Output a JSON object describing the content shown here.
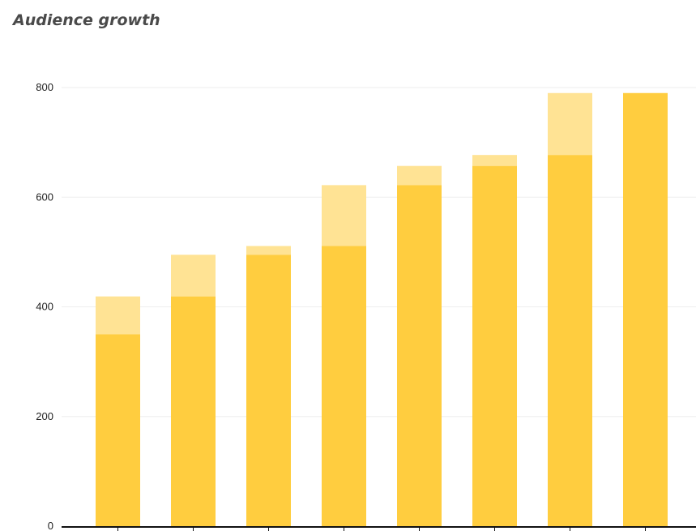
{
  "chart_data": {
    "type": "bar",
    "title": "Audience growth",
    "ylim": [
      0,
      800
    ],
    "yticks": [
      0,
      200,
      400,
      600,
      800
    ],
    "grid": true,
    "categories": [
      "",
      "",
      "",
      "",
      "",
      "",
      "",
      ""
    ],
    "series": [
      {
        "values": [
          350,
          419,
          495,
          511,
          622,
          657,
          677,
          790
        ]
      },
      {
        "values": [
          419,
          495,
          511,
          622,
          657,
          677,
          790,
          790
        ]
      }
    ],
    "colors": {
      "base": "#ffcd3f",
      "growth": "#ffe394",
      "axis": "#111111"
    }
  }
}
